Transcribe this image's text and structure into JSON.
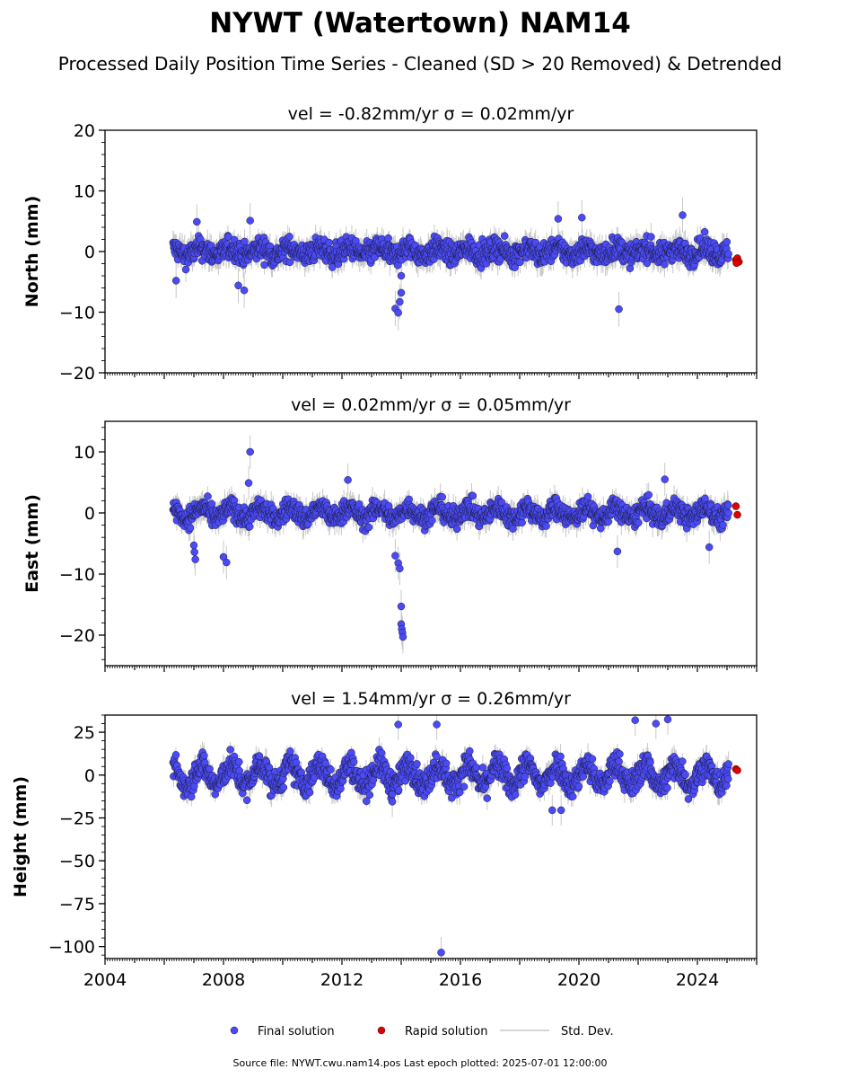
{
  "chart_data": {
    "type": "scatter",
    "title": "NYWT (Watertown) NAM14",
    "subtitle": "Processed Daily Position Time Series - Cleaned (SD > 20 Removed) & Detrended",
    "xlim": [
      2004,
      2026
    ],
    "x_ticks": [
      "2004",
      "2008",
      "2012",
      "2016",
      "2020",
      "2024"
    ],
    "grid": false,
    "legend": {
      "placement": "bottom-center",
      "entries": [
        {
          "label": "Final solution",
          "color": "#4b4bf5"
        },
        {
          "label": "Rapid solution",
          "color": "#e00000"
        },
        {
          "label": "Std. Dev.",
          "color": "#c8c8c8"
        }
      ]
    },
    "footer": "Source file: NYWT.cwu.nam14.pos  Last epoch plotted: 2025-07-01 12:00:00",
    "panels": [
      {
        "id": "north",
        "title": "vel = -0.82mm/yr   σ = 0.02mm/yr",
        "ylabel": "North (mm)",
        "ylim": [
          -20,
          20
        ],
        "y_ticks": [
          20,
          10,
          0,
          -10,
          -20
        ],
        "y_tick_labels": [
          "20",
          "10",
          "0",
          "−10",
          "−20"
        ],
        "data_start": 2006.3,
        "data_end": 2025.05,
        "noise": 1.3,
        "wave": 0.6,
        "sd": 1.6,
        "outliers": [
          {
            "x": 2006.4,
            "y": -4.8
          },
          {
            "x": 2007.1,
            "y": 4.9
          },
          {
            "x": 2008.9,
            "y": 5.1
          },
          {
            "x": 2008.5,
            "y": -5.6
          },
          {
            "x": 2008.7,
            "y": -6.4
          },
          {
            "x": 2013.8,
            "y": -9.4
          },
          {
            "x": 2013.9,
            "y": -10.1
          },
          {
            "x": 2013.95,
            "y": -8.3
          },
          {
            "x": 2014.0,
            "y": -6.8
          },
          {
            "x": 2014.0,
            "y": -4.0
          },
          {
            "x": 2019.3,
            "y": 5.4
          },
          {
            "x": 2020.1,
            "y": 5.6
          },
          {
            "x": 2021.35,
            "y": -9.5
          },
          {
            "x": 2023.5,
            "y": 6.0
          }
        ],
        "rapid": [
          {
            "x": 2025.3,
            "y": -1.4
          },
          {
            "x": 2025.35,
            "y": -1.1
          },
          {
            "x": 2025.4,
            "y": -1.7
          },
          {
            "x": 2025.32,
            "y": -1.9
          }
        ]
      },
      {
        "id": "east",
        "title": "vel = 0.02mm/yr   σ = 0.05mm/yr",
        "ylabel": "East (mm)",
        "ylim": [
          -25,
          15
        ],
        "y_ticks": [
          10,
          0,
          -10,
          -20
        ],
        "y_tick_labels": [
          "10",
          "0",
          "−10",
          "−20"
        ],
        "data_start": 2006.3,
        "data_end": 2025.05,
        "noise": 1.2,
        "wave": 0.9,
        "sd": 1.5,
        "outliers": [
          {
            "x": 2007.0,
            "y": -5.3
          },
          {
            "x": 2007.02,
            "y": -6.4
          },
          {
            "x": 2007.05,
            "y": -7.6
          },
          {
            "x": 2008.0,
            "y": -7.2
          },
          {
            "x": 2008.1,
            "y": -8.1
          },
          {
            "x": 2008.9,
            "y": 10.0
          },
          {
            "x": 2008.85,
            "y": 4.9
          },
          {
            "x": 2012.2,
            "y": 5.4
          },
          {
            "x": 2013.8,
            "y": -7.0
          },
          {
            "x": 2013.9,
            "y": -8.2
          },
          {
            "x": 2013.95,
            "y": -9.1
          },
          {
            "x": 2014.0,
            "y": -15.3
          },
          {
            "x": 2014.0,
            "y": -18.2
          },
          {
            "x": 2014.02,
            "y": -19.0
          },
          {
            "x": 2014.04,
            "y": -19.6
          },
          {
            "x": 2014.06,
            "y": -20.3
          },
          {
            "x": 2021.3,
            "y": -6.3
          },
          {
            "x": 2022.9,
            "y": 5.5
          },
          {
            "x": 2024.4,
            "y": -5.6
          }
        ],
        "rapid": [
          {
            "x": 2025.3,
            "y": 1.1
          },
          {
            "x": 2025.35,
            "y": -0.3
          }
        ]
      },
      {
        "id": "height",
        "title": "vel = 1.54mm/yr   σ = 0.26mm/yr",
        "ylabel": "Height (mm)",
        "ylim": [
          -107,
          35
        ],
        "y_ticks": [
          25,
          0,
          -25,
          -50,
          -75,
          -100
        ],
        "y_tick_labels": [
          "25",
          "0",
          "−25",
          "−50",
          "−75",
          "−100"
        ],
        "data_start": 2006.3,
        "data_end": 2025.05,
        "noise": 5.5,
        "wave": 6.0,
        "sd": 5.0,
        "outliers": [
          {
            "x": 2013.9,
            "y": 29.5
          },
          {
            "x": 2015.2,
            "y": 29.5
          },
          {
            "x": 2013.7,
            "y": -15.5
          },
          {
            "x": 2015.35,
            "y": -103.5
          },
          {
            "x": 2019.1,
            "y": -20.5
          },
          {
            "x": 2019.4,
            "y": -20.5
          },
          {
            "x": 2021.9,
            "y": 32.0
          },
          {
            "x": 2023.0,
            "y": 32.5
          },
          {
            "x": 2022.6,
            "y": 30.0
          }
        ],
        "rapid": [
          {
            "x": 2025.3,
            "y": 3.5
          },
          {
            "x": 2025.35,
            "y": 2.8
          }
        ]
      }
    ]
  }
}
